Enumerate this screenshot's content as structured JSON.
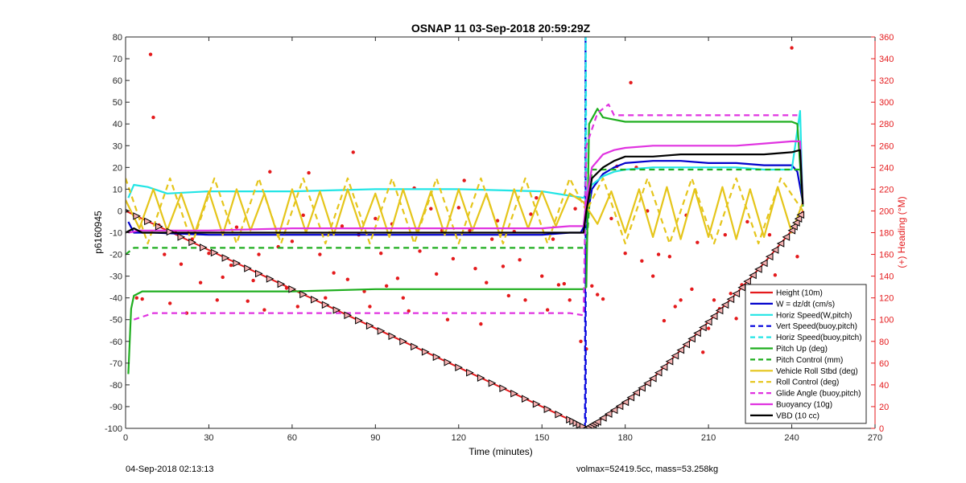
{
  "chart_data": {
    "type": "line",
    "title": "OSNAP 11 03-Sep-2018 20:59:29Z",
    "xlabel": "Time (minutes)",
    "ylabel": "p6160945",
    "y2label": "(+) Heading (°M)",
    "xlim": [
      0,
      270
    ],
    "ylim": [
      -100,
      80
    ],
    "y2lim": [
      0,
      360
    ],
    "xticks": [
      0,
      30,
      60,
      90,
      120,
      150,
      180,
      210,
      240,
      270
    ],
    "yticks": [
      -100,
      -90,
      -80,
      -70,
      -60,
      -50,
      -40,
      -30,
      -20,
      -10,
      0,
      10,
      20,
      30,
      40,
      50,
      60,
      70,
      80
    ],
    "y2ticks": [
      0,
      20,
      40,
      60,
      80,
      100,
      120,
      140,
      160,
      180,
      200,
      220,
      240,
      260,
      280,
      300,
      320,
      340,
      360
    ],
    "grid": false,
    "legend_position": "bottom-right",
    "series": [
      {
        "name": "Height (10m)",
        "color": "#e41a1c",
        "style": "solid",
        "x": [
          0,
          20,
          40,
          60,
          80,
          100,
          120,
          140,
          160,
          166,
          170,
          180,
          190,
          200,
          210,
          220,
          230,
          240,
          244
        ],
        "y": [
          0,
          -12,
          -24,
          -36,
          -48,
          -60,
          -72,
          -84,
          -96,
          -100,
          -97,
          -88,
          -77,
          -64,
          -51,
          -38,
          -24,
          -9,
          0
        ]
      },
      {
        "name": "W = dz/dt (cm/s)",
        "color": "#0000cc",
        "style": "solid",
        "x": [
          1,
          3,
          10,
          30,
          60,
          90,
          120,
          150,
          160,
          164,
          166,
          168,
          172,
          176,
          180,
          190,
          200,
          210,
          220,
          230,
          240,
          242,
          244
        ],
        "y": [
          -5,
          -10,
          -10,
          -11,
          -11,
          -11,
          -11,
          -11,
          -10,
          -10,
          -5,
          10,
          17,
          20,
          22,
          23,
          23,
          22,
          22,
          21,
          21,
          18,
          4
        ]
      },
      {
        "name": "Horiz Speed(W,pitch)",
        "color": "#22e5e5",
        "style": "solid",
        "x": [
          1,
          3,
          8,
          15,
          30,
          60,
          90,
          120,
          150,
          160,
          165,
          168,
          172,
          176,
          180,
          190,
          200,
          210,
          220,
          230,
          240,
          243,
          244
        ],
        "y": [
          6,
          12,
          11,
          8,
          9,
          9,
          10,
          10,
          9,
          7,
          6,
          12,
          16,
          18,
          19,
          20,
          20,
          20,
          20,
          19,
          19,
          46,
          2
        ]
      },
      {
        "name": "Vert Speed(buoy,pitch)",
        "color": "#0000dd",
        "style": "dashed",
        "x": [
          165.5,
          165.6,
          165.7,
          165.8
        ],
        "y": [
          -100,
          20,
          80,
          -100
        ]
      },
      {
        "name": "Horiz Speed(buoy,pitch)",
        "color": "#22e5e5",
        "style": "dashed",
        "x": [
          165.6,
          165.8,
          166
        ],
        "y": [
          -15,
          80,
          15
        ]
      },
      {
        "name": "Pitch Up (deg)",
        "color": "#1fae1f",
        "style": "solid",
        "x": [
          1,
          2,
          3,
          6,
          20,
          60,
          90,
          120,
          150,
          160,
          165,
          166,
          167,
          170,
          172,
          176,
          180,
          190,
          200,
          210,
          220,
          230,
          240,
          242,
          244
        ],
        "y": [
          -75,
          -45,
          -39,
          -37,
          -37,
          -37,
          -36,
          -36,
          -36,
          -36,
          -36,
          -35,
          40,
          47,
          43,
          42,
          41,
          41,
          41,
          41,
          41,
          41,
          41,
          40,
          2
        ]
      },
      {
        "name": "Pitch Control (mm)",
        "color": "#1fae1f",
        "style": "dashed",
        "x": [
          0,
          3,
          6,
          165,
          166,
          168,
          244
        ],
        "y": [
          -20,
          -17,
          -17,
          -17,
          -17,
          19,
          19
        ]
      },
      {
        "name": "Vehicle Roll Stbd (deg)",
        "color": "#e5c51a",
        "style": "solid",
        "x": [
          0,
          5,
          10,
          15,
          20,
          25,
          30,
          35,
          40,
          45,
          50,
          55,
          60,
          65,
          70,
          75,
          80,
          85,
          90,
          95,
          100,
          105,
          110,
          115,
          120,
          125,
          130,
          135,
          140,
          145,
          150,
          155,
          160,
          165,
          170,
          175,
          180,
          185,
          190,
          195,
          200,
          205,
          210,
          215,
          220,
          225,
          230,
          235,
          240,
          244
        ],
        "y": [
          5,
          -8,
          10,
          -9,
          8,
          -10,
          9,
          -11,
          10,
          -9,
          8,
          -12,
          10,
          -10,
          9,
          -11,
          10,
          -9,
          8,
          -12,
          10,
          -10,
          9,
          -11,
          10,
          -9,
          8,
          -12,
          10,
          -8,
          9,
          -7,
          8,
          4,
          -6,
          9,
          -10,
          10,
          -12,
          11,
          -13,
          10,
          -12,
          11,
          -13,
          10,
          -12,
          11,
          -10,
          4
        ]
      },
      {
        "name": "Roll Control (deg)",
        "color": "#e5c51a",
        "style": "dashed",
        "x": [
          0,
          8,
          16,
          24,
          32,
          40,
          48,
          56,
          64,
          72,
          80,
          88,
          96,
          104,
          112,
          120,
          128,
          136,
          144,
          152,
          160,
          166,
          172,
          180,
          188,
          196,
          204,
          212,
          220,
          228,
          236,
          244
        ],
        "y": [
          15,
          -15,
          15,
          -15,
          15,
          -15,
          15,
          -15,
          15,
          -15,
          15,
          -15,
          15,
          -15,
          15,
          -15,
          15,
          -15,
          15,
          -15,
          15,
          0,
          15,
          -15,
          15,
          -15,
          15,
          -15,
          15,
          -15,
          15,
          0
        ]
      },
      {
        "name": "Glide Angle (buoy,pitch)",
        "color": "#e033e0",
        "style": "dashed",
        "x": [
          3,
          10,
          30,
          60,
          90,
          120,
          150,
          160,
          165,
          166,
          170,
          174,
          176,
          180,
          190,
          200,
          210,
          220,
          230,
          240,
          242
        ],
        "y": [
          -50,
          -47,
          -47,
          -47,
          -47,
          -47,
          -47,
          -47,
          -48,
          30,
          45,
          49,
          44,
          44,
          44,
          44,
          44,
          44,
          44,
          44,
          44
        ]
      },
      {
        "name": "Buoyancy (10g)",
        "color": "#e033e0",
        "style": "solid",
        "x": [
          1,
          5,
          10,
          30,
          60,
          90,
          120,
          150,
          160,
          165,
          166,
          168,
          172,
          176,
          180,
          190,
          200,
          210,
          220,
          230,
          240,
          243,
          244
        ],
        "y": [
          -10,
          -9,
          -9,
          -9,
          -8,
          -8,
          -8,
          -8,
          -7,
          -7,
          5,
          20,
          26,
          28,
          29,
          30,
          30,
          30,
          30,
          31,
          32,
          32,
          3
        ]
      },
      {
        "name": "VBD (10 cc)",
        "color": "#000000",
        "style": "solid",
        "x": [
          0,
          3,
          6,
          10,
          30,
          60,
          90,
          120,
          150,
          160,
          165,
          166,
          168,
          172,
          176,
          180,
          190,
          200,
          210,
          220,
          230,
          240,
          243,
          244
        ],
        "y": [
          -10,
          -8,
          -10,
          -10,
          -10,
          -10,
          -10,
          -10,
          -10,
          -10,
          -10,
          0,
          15,
          20,
          23,
          25,
          25,
          26,
          26,
          26,
          26,
          27,
          28,
          3
        ]
      }
    ],
    "heading_points_y2": [
      [
        4,
        120
      ],
      [
        6,
        119
      ],
      [
        9,
        344
      ],
      [
        10,
        286
      ],
      [
        12,
        187
      ],
      [
        14,
        160
      ],
      [
        16,
        115
      ],
      [
        18,
        180
      ],
      [
        20,
        151
      ],
      [
        22,
        106
      ],
      [
        24,
        174
      ],
      [
        27,
        134
      ],
      [
        30,
        161
      ],
      [
        33,
        118
      ],
      [
        35,
        139
      ],
      [
        38,
        150
      ],
      [
        40,
        185
      ],
      [
        44,
        117
      ],
      [
        46,
        136
      ],
      [
        48,
        160
      ],
      [
        50,
        109
      ],
      [
        52,
        236
      ],
      [
        55,
        167
      ],
      [
        58,
        129
      ],
      [
        60,
        172
      ],
      [
        62,
        112
      ],
      [
        64,
        196
      ],
      [
        66,
        235
      ],
      [
        70,
        160
      ],
      [
        72,
        120
      ],
      [
        75,
        143
      ],
      [
        78,
        186
      ],
      [
        80,
        137
      ],
      [
        82,
        254
      ],
      [
        84,
        178
      ],
      [
        86,
        126
      ],
      [
        88,
        112
      ],
      [
        90,
        193
      ],
      [
        92,
        161
      ],
      [
        94,
        131
      ],
      [
        96,
        188
      ],
      [
        98,
        138
      ],
      [
        100,
        120
      ],
      [
        102,
        108
      ],
      [
        104,
        221
      ],
      [
        106,
        163
      ],
      [
        110,
        202
      ],
      [
        112,
        142
      ],
      [
        114,
        182
      ],
      [
        116,
        100
      ],
      [
        118,
        156
      ],
      [
        120,
        203
      ],
      [
        122,
        228
      ],
      [
        124,
        182
      ],
      [
        126,
        147
      ],
      [
        128,
        96
      ],
      [
        130,
        134
      ],
      [
        132,
        174
      ],
      [
        134,
        191
      ],
      [
        136,
        149
      ],
      [
        138,
        122
      ],
      [
        140,
        181
      ],
      [
        142,
        155
      ],
      [
        144,
        118
      ],
      [
        146,
        197
      ],
      [
        148,
        212
      ],
      [
        150,
        140
      ],
      [
        152,
        109
      ],
      [
        154,
        174
      ],
      [
        156,
        132
      ],
      [
        158,
        133
      ],
      [
        160,
        118
      ],
      [
        162,
        202
      ],
      [
        164,
        80
      ],
      [
        166,
        73
      ],
      [
        168,
        131
      ],
      [
        170,
        123
      ],
      [
        172,
        119
      ],
      [
        175,
        193
      ],
      [
        177,
        241
      ],
      [
        180,
        161
      ],
      [
        182,
        318
      ],
      [
        184,
        240
      ],
      [
        186,
        154
      ],
      [
        188,
        200
      ],
      [
        190,
        140
      ],
      [
        192,
        160
      ],
      [
        194,
        99
      ],
      [
        196,
        158
      ],
      [
        198,
        112
      ],
      [
        200,
        118
      ],
      [
        202,
        196
      ],
      [
        204,
        128
      ],
      [
        206,
        171
      ],
      [
        208,
        70
      ],
      [
        210,
        92
      ],
      [
        212,
        118
      ],
      [
        214,
        110
      ],
      [
        216,
        178
      ],
      [
        218,
        124
      ],
      [
        220,
        101
      ],
      [
        222,
        132
      ],
      [
        224,
        190
      ],
      [
        226,
        110
      ],
      [
        228,
        107
      ],
      [
        230,
        74
      ],
      [
        232,
        178
      ],
      [
        234,
        141
      ],
      [
        236,
        84
      ],
      [
        238,
        128
      ],
      [
        240,
        113
      ],
      [
        242,
        158
      ],
      [
        240,
        350
      ]
    ],
    "annotations": {
      "bottom_left": "04-Sep-2018 02:13:13",
      "bottom_right": "volmax=52419.5cc, mass=53.258kg"
    }
  }
}
